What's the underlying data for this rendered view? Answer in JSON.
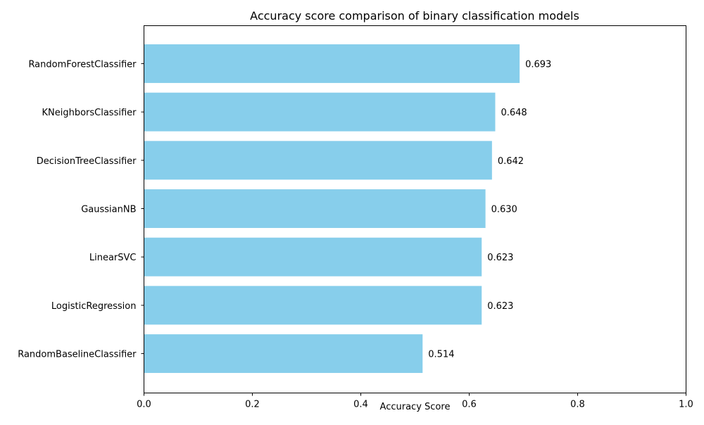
{
  "chart_data": {
    "type": "bar",
    "orientation": "horizontal",
    "title": "Accuracy score comparison of binary classification models",
    "xlabel": "Accuracy Score",
    "ylabel": "",
    "xlim": [
      0.0,
      1.0
    ],
    "x_ticks": [
      "0.0",
      "0.2",
      "0.4",
      "0.6",
      "0.8",
      "1.0"
    ],
    "x_tick_values": [
      0.0,
      0.2,
      0.4,
      0.6,
      0.8,
      1.0
    ],
    "categories": [
      "RandomForestClassifier",
      "KNeighborsClassifier",
      "DecisionTreeClassifier",
      "GaussianNB",
      "LinearSVC",
      "LogisticRegression",
      "RandomBaselineClassifier"
    ],
    "values": [
      0.693,
      0.648,
      0.642,
      0.63,
      0.623,
      0.623,
      0.514
    ],
    "value_labels": [
      "0.693",
      "0.648",
      "0.642",
      "0.630",
      "0.623",
      "0.623",
      "0.514"
    ],
    "bar_color": "#87CEEB",
    "grid": false,
    "legend": "none"
  }
}
